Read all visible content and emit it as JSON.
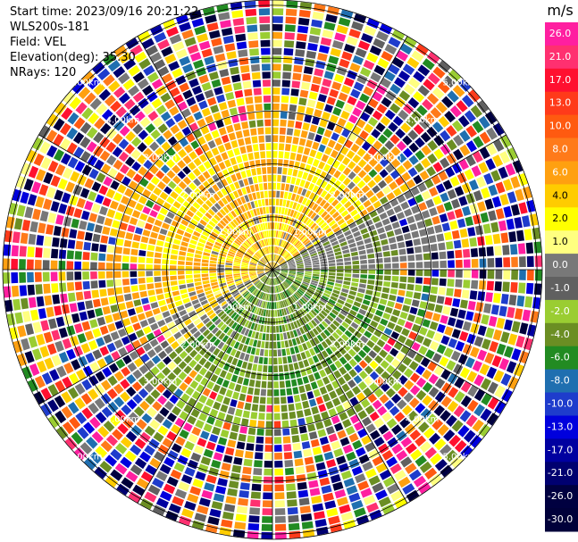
{
  "header": {
    "start_time": "Start time: 2023/09/16 20:21:22",
    "instrument": "WLS200s-181",
    "field": "Field: VEL",
    "elevation": "Elevation(deg): 35.30",
    "nrays": "NRays: 120"
  },
  "chart_data": {
    "type": "heatmap",
    "projection": "polar-ppi",
    "title": "",
    "field": "VEL",
    "rays": 120,
    "range_rings_km": [
      1.0,
      2.0,
      3.0,
      4.0,
      5.0
    ],
    "ring_labels": [
      "1.00km",
      "2.00km",
      "3.00km",
      "4.00km",
      "5.00km"
    ],
    "grid": true,
    "colorbar": {
      "unit": "m/s",
      "placement": "right",
      "ticks": [
        "26.0",
        "21.0",
        "17.0",
        "13.0",
        "10.0",
        "8.0",
        "6.0",
        "4.0",
        "2.0",
        "1.0",
        "0.0",
        "-1.0",
        "-2.0",
        "-4.0",
        "-6.0",
        "-8.0",
        "-10.0",
        "-13.0",
        "-17.0",
        "-21.0",
        "-26.0",
        "-30.0"
      ],
      "colors": [
        "#ff1fa0",
        "#ff3070",
        "#ff1030",
        "#ff3a1a",
        "#ff5a10",
        "#ff7a1a",
        "#ffa010",
        "#ffcc00",
        "#ffff00",
        "#ffff80",
        "#787878",
        "#606060",
        "#9acd32",
        "#6b8e23",
        "#228b22",
        "#1f6fb0",
        "#1e3ccc",
        "#0000dd",
        "#0000a0",
        "#000070",
        "#000040",
        "#00003a"
      ]
    },
    "annotation": "velocity field: near range warm (+1..+6 m/s) toward the north-west, cool (-1..-6 m/s) toward the south-east, noisy far range"
  }
}
